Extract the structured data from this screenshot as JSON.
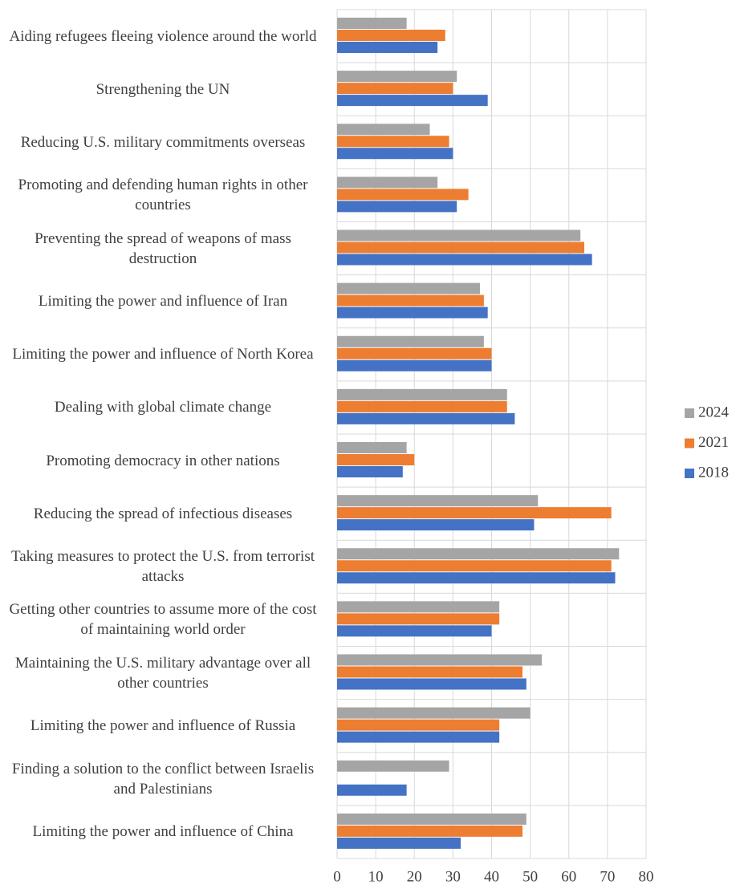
{
  "chart_data": {
    "type": "bar",
    "orientation": "horizontal",
    "categories": [
      "Aiding refugees fleeing violence around the world",
      "Strengthening the UN",
      "Reducing U.S. military commitments overseas",
      "Promoting and defending human rights in other countries",
      "Preventing the spread of weapons of mass destruction",
      "Limiting the power and influence of Iran",
      "Limiting the power and influence of North Korea",
      "Dealing with global climate change",
      "Promoting democracy in other nations",
      "Reducing the spread of infectious diseases",
      "Taking measures to protect the U.S. from terrorist attacks",
      "Getting other countries to assume more of the cost of maintaining world order",
      "Maintaining the U.S. military advantage over all other countries",
      "Limiting the power and influence of Russia",
      "Finding a solution to the conflict between Israelis and Palestinians",
      "Limiting the power and influence of China"
    ],
    "series": [
      {
        "name": "2024",
        "color": "#a5a5a5",
        "values": [
          18,
          31,
          24,
          26,
          63,
          37,
          38,
          44,
          18,
          52,
          73,
          42,
          53,
          50,
          29,
          49
        ]
      },
      {
        "name": "2021",
        "color": "#ed7d31",
        "values": [
          28,
          30,
          29,
          34,
          64,
          38,
          40,
          44,
          20,
          71,
          71,
          42,
          48,
          42,
          null,
          48
        ]
      },
      {
        "name": "2018",
        "color": "#4472c4",
        "values": [
          26,
          39,
          30,
          31,
          66,
          39,
          40,
          46,
          17,
          51,
          72,
          40,
          49,
          42,
          18,
          32
        ]
      }
    ],
    "xlim": [
      0,
      80
    ],
    "xticks": [
      0,
      10,
      20,
      30,
      40,
      50,
      60,
      70,
      80
    ],
    "grid": true,
    "legend": "right"
  }
}
